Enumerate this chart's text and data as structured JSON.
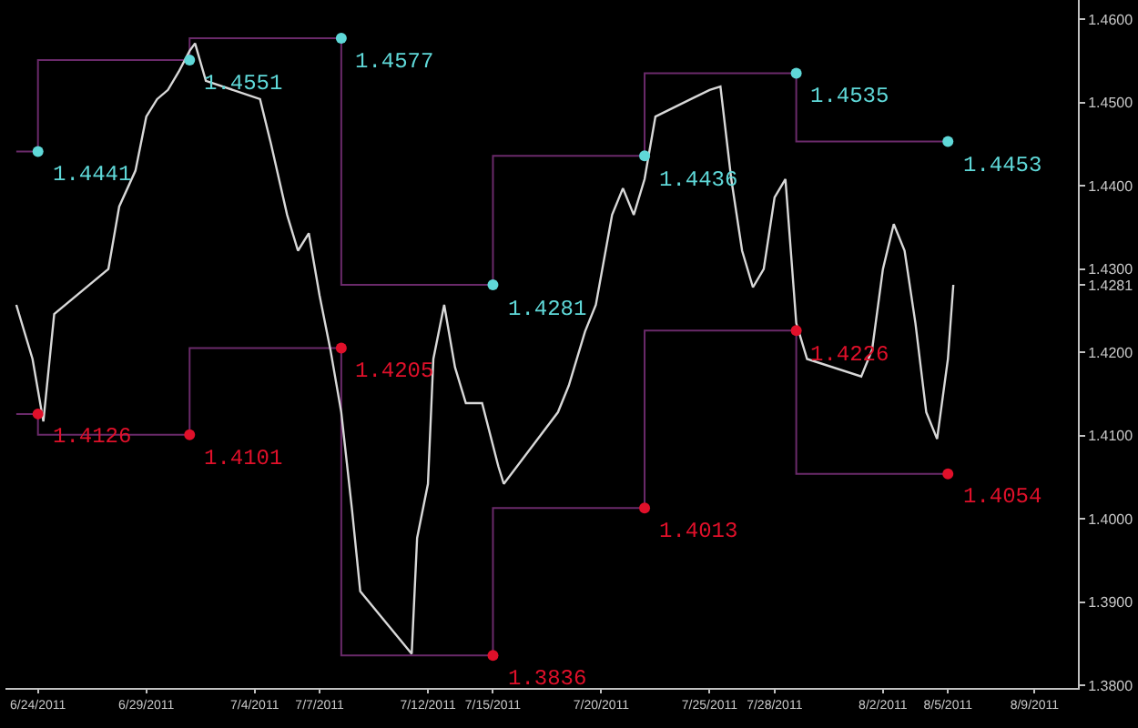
{
  "chart_data": {
    "type": "line",
    "xlim": [
      "2011-06-22T12:00",
      "2011-08-11"
    ],
    "xticks": [
      {
        "value": "2011-06-24",
        "label": "6/24/2011"
      },
      {
        "value": "2011-06-29",
        "label": "6/29/2011"
      },
      {
        "value": "2011-07-04",
        "label": "7/4/2011"
      },
      {
        "value": "2011-07-07",
        "label": "7/7/2011"
      },
      {
        "value": "2011-07-12",
        "label": "7/12/2011"
      },
      {
        "value": "2011-07-15",
        "label": "7/15/2011"
      },
      {
        "value": "2011-07-20",
        "label": "7/20/2011"
      },
      {
        "value": "2011-07-25",
        "label": "7/25/2011"
      },
      {
        "value": "2011-07-28",
        "label": "7/28/2011"
      },
      {
        "value": "2011-08-02",
        "label": "8/2/2011"
      },
      {
        "value": "2011-08-05",
        "label": "8/5/2011"
      },
      {
        "value": "2011-08-09",
        "label": "8/9/2011"
      }
    ],
    "ylim": [
      1.3797,
      1.4623
    ],
    "yticks": [
      {
        "value": 1.38,
        "label": "1.3800"
      },
      {
        "value": 1.39,
        "label": "1.3900"
      },
      {
        "value": 1.4,
        "label": "1.4000"
      },
      {
        "value": 1.41,
        "label": "1.4100"
      },
      {
        "value": 1.42,
        "label": "1.4200"
      },
      {
        "value": 1.4281,
        "label": "1.4281"
      },
      {
        "value": 1.43,
        "label": "1.4300"
      },
      {
        "value": 1.44,
        "label": "1.4400"
      },
      {
        "value": 1.45,
        "label": "1.4500"
      },
      {
        "value": 1.46,
        "label": "1.4600"
      }
    ],
    "series": [
      {
        "type": "step",
        "color": "#6a2a6a",
        "x": [
          "2011-06-23",
          "2011-06-24",
          "2011-07-01",
          "2011-07-08",
          "2011-07-15",
          "2011-07-22",
          "2011-07-29",
          "2011-08-05"
        ],
        "values": [
          1.4441,
          1.4551,
          1.4577,
          1.4281,
          1.4436,
          1.4535,
          1.4453,
          1.4453
        ]
      },
      {
        "type": "step",
        "color": "#6a2a6a",
        "x": [
          "2011-06-23",
          "2011-06-24",
          "2011-07-01",
          "2011-07-08",
          "2011-07-15",
          "2011-07-22",
          "2011-07-29",
          "2011-08-05"
        ],
        "values": [
          1.4126,
          1.4101,
          1.4205,
          1.3836,
          1.4013,
          1.4226,
          1.4054,
          1.4054
        ]
      },
      {
        "color": "#d8d8d8",
        "x": [
          "2011-06-23T00:00",
          "2011-06-23T18:00",
          "2011-06-24T06:00",
          "2011-06-24T18:00",
          "2011-06-27T06:00",
          "2011-06-27T18:00",
          "2011-06-28T12:00",
          "2011-06-29T00:00",
          "2011-06-29T12:00",
          "2011-06-30T00:00",
          "2011-06-30T12:00",
          "2011-07-01T00:00",
          "2011-07-01T06:00",
          "2011-07-01T18:00",
          "2011-07-04T06:00",
          "2011-07-04T18:00",
          "2011-07-05T12:00",
          "2011-07-06T00:00",
          "2011-07-06T12:00",
          "2011-07-07T00:00",
          "2011-07-07T12:00",
          "2011-07-08T00:00",
          "2011-07-08T12:00",
          "2011-07-08T21:00",
          "2011-07-11T06:00",
          "2011-07-11T12:00",
          "2011-07-12T00:00",
          "2011-07-12T06:00",
          "2011-07-12T18:00",
          "2011-07-13T06:00",
          "2011-07-13T18:00",
          "2011-07-14T12:00",
          "2011-07-15T06:00",
          "2011-07-15T12:00",
          "2011-07-18T00:00",
          "2011-07-18T12:00",
          "2011-07-19T06:00",
          "2011-07-19T18:00",
          "2011-07-20T12:00",
          "2011-07-21T00:00",
          "2011-07-21T12:00",
          "2011-07-22T00:00",
          "2011-07-22T12:00",
          "2011-07-25T00:00",
          "2011-07-25T12:00",
          "2011-07-26T00:00",
          "2011-07-26T12:00",
          "2011-07-27T00:00",
          "2011-07-27T12:00",
          "2011-07-28T00:00",
          "2011-07-28T12:00",
          "2011-07-29T00:00",
          "2011-07-29T12:00",
          "2011-08-01T00:00",
          "2011-08-01T12:00",
          "2011-08-02T00:00",
          "2011-08-02T12:00",
          "2011-08-03T00:00",
          "2011-08-03T12:00",
          "2011-08-04T00:00",
          "2011-08-04T12:00",
          "2011-08-05T00:00",
          "2011-08-05T06:00"
        ],
        "values": [
          1.4257,
          1.4192,
          1.4117,
          1.4246,
          1.43,
          1.4375,
          1.4418,
          1.4483,
          1.4504,
          1.4515,
          1.4537,
          1.4562,
          1.4571,
          1.4526,
          1.4504,
          1.4451,
          1.4365,
          1.4322,
          1.4343,
          1.4268,
          1.4203,
          1.4128,
          1.401,
          1.3913,
          1.3838,
          1.3977,
          1.4042,
          1.4192,
          1.4257,
          1.4182,
          1.4139,
          1.4139,
          1.4063,
          1.4042,
          1.4128,
          1.416,
          1.4225,
          1.4257,
          1.4365,
          1.4397,
          1.4365,
          1.4408,
          1.4483,
          1.4515,
          1.4519,
          1.4408,
          1.4322,
          1.4278,
          1.43,
          1.4386,
          1.4408,
          1.4235,
          1.4192,
          1.4171,
          1.4203,
          1.43,
          1.4354,
          1.4322,
          1.4235,
          1.4128,
          1.4096,
          1.4192,
          1.4281
        ]
      },
      {
        "type": "scatter",
        "color": "#5fd8d8",
        "x": [
          "2011-06-24",
          "2011-07-01",
          "2011-07-08",
          "2011-07-15",
          "2011-07-22",
          "2011-07-29",
          "2011-08-05"
        ],
        "values": [
          1.4441,
          1.4551,
          1.4577,
          1.4281,
          1.4436,
          1.4535,
          1.4453
        ]
      },
      {
        "type": "scatter",
        "color": "#e0102a",
        "x": [
          "2011-06-24",
          "2011-07-01",
          "2011-07-08",
          "2011-07-15",
          "2011-07-22",
          "2011-07-29",
          "2011-08-05"
        ],
        "values": [
          1.4126,
          1.4101,
          1.4205,
          1.3836,
          1.4013,
          1.4226,
          1.4054
        ]
      }
    ],
    "annotations": [
      {
        "text": "1.4441",
        "x": "2011-06-24",
        "y": 1.4441
      },
      {
        "text": "1.4126",
        "x": "2011-06-24",
        "y": 1.4126
      },
      {
        "text": "1.4551",
        "x": "2011-07-01",
        "y": 1.4551
      },
      {
        "text": "1.4101",
        "x": "2011-07-01",
        "y": 1.4101
      },
      {
        "text": "1.4577",
        "x": "2011-07-08",
        "y": 1.4577
      },
      {
        "text": "1.4205",
        "x": "2011-07-08",
        "y": 1.4205
      },
      {
        "text": "1.4281",
        "x": "2011-07-15",
        "y": 1.4281
      },
      {
        "text": "1.3836",
        "x": "2011-07-15",
        "y": 1.3836
      },
      {
        "text": "1.4436",
        "x": "2011-07-22",
        "y": 1.4436
      },
      {
        "text": "1.4013",
        "x": "2011-07-22",
        "y": 1.4013
      },
      {
        "text": "1.4535",
        "x": "2011-07-29",
        "y": 1.4535
      },
      {
        "text": "1.4226",
        "x": "2011-07-29",
        "y": 1.4226
      },
      {
        "text": "1.4453",
        "x": "2011-08-05",
        "y": 1.4453
      },
      {
        "text": "1.4054",
        "x": "2011-08-05",
        "y": 1.4054
      }
    ]
  }
}
